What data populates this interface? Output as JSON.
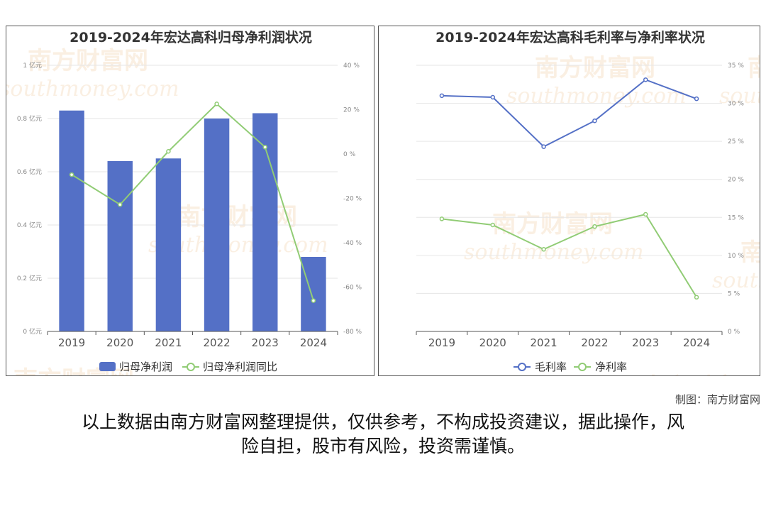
{
  "chart_data": [
    {
      "type": "bar",
      "title": "2019-2024年宏达高科归母净利润状况",
      "categories": [
        "2019",
        "2020",
        "2021",
        "2022",
        "2023",
        "2024"
      ],
      "series": [
        {
          "name": "归母净利润",
          "type": "bar",
          "axis": "left",
          "values": [
            0.83,
            0.64,
            0.65,
            0.8,
            0.82,
            0.28
          ],
          "color": "#5470c6"
        },
        {
          "name": "归母净利润同比",
          "type": "line",
          "axis": "right",
          "values": [
            -9.3,
            -22.8,
            1.2,
            22.6,
            3.1,
            -66.1
          ],
          "color": "#91cc75"
        }
      ],
      "left_axis": {
        "ylim": [
          0,
          1
        ],
        "ticks": [
          0,
          0.2,
          0.4,
          0.6,
          0.8,
          1
        ],
        "tick_labels": [
          "0 亿元",
          "0.2 亿元",
          "0.4 亿元",
          "0.6 亿元",
          "0.8 亿元",
          "1 亿元"
        ]
      },
      "right_axis": {
        "ylim": [
          -80,
          40
        ],
        "ticks": [
          -80,
          -60,
          -40,
          -20,
          0,
          20,
          40
        ],
        "tick_labels": [
          "-80 %",
          "-60 %",
          "-40 %",
          "-20 %",
          "0 %",
          "20 %",
          "40 %"
        ]
      },
      "legend_placement": "bottom-center",
      "grid": true
    },
    {
      "type": "line",
      "title": "2019-2024年宏达高科毛利率与净利率状况",
      "categories": [
        "2019",
        "2020",
        "2021",
        "2022",
        "2023",
        "2024"
      ],
      "series": [
        {
          "name": "毛利率",
          "values": [
            31.0,
            30.8,
            24.3,
            27.7,
            33.1,
            30.6
          ],
          "color": "#5470c6"
        },
        {
          "name": "净利率",
          "values": [
            14.8,
            14.0,
            10.8,
            13.8,
            15.4,
            4.5
          ],
          "color": "#91cc75"
        }
      ],
      "right_axis": {
        "ylim": [
          0,
          35
        ],
        "ticks": [
          0,
          5,
          10,
          15,
          20,
          25,
          30,
          35
        ],
        "tick_labels": [
          "0 %",
          "5 %",
          "10 %",
          "15 %",
          "20 %",
          "25 %",
          "30 %",
          "35 %"
        ]
      },
      "legend_placement": "bottom-center",
      "grid": true
    }
  ],
  "watermark": {
    "cn": "南方财富网",
    "en": "southmoney.com"
  },
  "footer": {
    "credit": "制图：南方财富网",
    "disclaimer_line1": "以上数据由南方财富网整理提供，仅供参考，不构成投资建议，据此操作，风",
    "disclaimer_line2": "险自担，股市有风险，投资需谨慎。"
  }
}
